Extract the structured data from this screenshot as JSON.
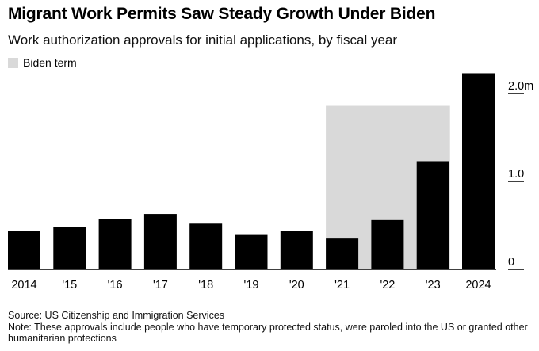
{
  "header": {
    "title": "Migrant Work Permits Saw Steady Growth Under Biden",
    "subtitle": "Work authorization approvals for initial applications, by fiscal year"
  },
  "legend": {
    "biden_label": "Biden term"
  },
  "colors": {
    "bar": "#000000",
    "shade": "#d9d9d9",
    "axis": "#000000"
  },
  "chart_data": {
    "type": "bar",
    "title": "Migrant Work Permits Saw Steady Growth Under Biden",
    "subtitle": "Work authorization approvals for initial applications, by fiscal year",
    "categories": [
      "2014",
      "'15",
      "'16",
      "'17",
      "'18",
      "'19",
      "'20",
      "'21",
      "'22",
      "'23",
      "2024"
    ],
    "values": [
      0.44,
      0.48,
      0.57,
      0.63,
      0.52,
      0.4,
      0.44,
      0.35,
      0.56,
      1.23,
      2.23
    ],
    "unit": "millions",
    "ylim": [
      0,
      2.3
    ],
    "yticks": [
      0,
      1.0,
      2.0
    ],
    "ytick_labels": [
      "0",
      "1.0",
      "2.0m"
    ],
    "y_axis_side": "right",
    "shaded_region": {
      "label": "Biden term",
      "from": "'21",
      "to": "'23",
      "top_value": 1.86
    },
    "xlabel": "",
    "ylabel": ""
  },
  "footer": {
    "source": "Source: US Citizenship and Immigration Services",
    "note": "Note: These approvals include people who have temporary protected status, were paroled into the US or granted other humanitarian protections"
  }
}
